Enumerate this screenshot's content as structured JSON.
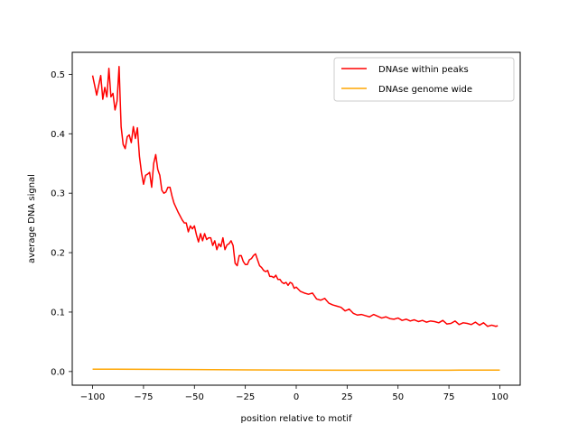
{
  "chart_data": {
    "type": "line",
    "title": "",
    "xlabel": "position relative to motif",
    "ylabel": "average DNA signal",
    "xlim": [
      -110,
      110
    ],
    "ylim": [
      -0.023,
      0.537
    ],
    "xticks": [
      -100,
      -75,
      -50,
      -25,
      0,
      25,
      50,
      75,
      100
    ],
    "xtick_labels": [
      "−100",
      "−75",
      "−50",
      "−25",
      "0",
      "25",
      "50",
      "75",
      "100"
    ],
    "yticks": [
      0.0,
      0.1,
      0.2,
      0.3,
      0.4,
      0.5
    ],
    "ytick_labels": [
      "0.0",
      "0.1",
      "0.2",
      "0.3",
      "0.4",
      "0.5"
    ],
    "grid": false,
    "legend": "upper-right",
    "series": [
      {
        "name": "DNAse within peaks",
        "color": "#ff0000",
        "x": [
          -100,
          -98,
          -96,
          -95,
          -94,
          -93,
          -92,
          -91,
          -90,
          -89,
          -88,
          -87,
          -86,
          -85,
          -84,
          -83,
          -82,
          -81,
          -80,
          -79,
          -78,
          -77,
          -76,
          -75,
          -74,
          -73,
          -72,
          -71,
          -70,
          -69,
          -68,
          -67,
          -66,
          -65,
          -64,
          -63,
          -62,
          -61,
          -60,
          -58,
          -56,
          -55,
          -54,
          -53,
          -52,
          -51,
          -50,
          -49,
          -48,
          -47,
          -46,
          -45,
          -44,
          -43,
          -42,
          -41,
          -40,
          -39,
          -38,
          -37,
          -36,
          -35,
          -34,
          -33,
          -32,
          -31,
          -30,
          -29,
          -28,
          -27,
          -26,
          -25,
          -24,
          -23,
          -22,
          -21,
          -20,
          -19,
          -18,
          -17,
          -16,
          -15,
          -14,
          -13,
          -12,
          -11,
          -10,
          -9,
          -8,
          -7,
          -6,
          -5,
          -4,
          -3,
          -2,
          -1,
          0,
          2,
          4,
          6,
          8,
          10,
          12,
          14,
          16,
          18,
          20,
          22,
          24,
          26,
          28,
          30,
          32,
          34,
          36,
          38,
          40,
          42,
          44,
          46,
          48,
          50,
          52,
          54,
          56,
          58,
          60,
          62,
          64,
          66,
          68,
          70,
          72,
          74,
          76,
          78,
          80,
          82,
          84,
          86,
          88,
          90,
          92,
          94,
          96,
          98,
          99
        ],
        "values": [
          0.498,
          0.465,
          0.498,
          0.458,
          0.478,
          0.462,
          0.51,
          0.462,
          0.468,
          0.44,
          0.455,
          0.513,
          0.412,
          0.382,
          0.375,
          0.395,
          0.398,
          0.385,
          0.412,
          0.392,
          0.41,
          0.362,
          0.335,
          0.315,
          0.33,
          0.332,
          0.335,
          0.31,
          0.35,
          0.365,
          0.34,
          0.33,
          0.305,
          0.3,
          0.302,
          0.31,
          0.31,
          0.295,
          0.283,
          0.268,
          0.255,
          0.25,
          0.25,
          0.235,
          0.245,
          0.24,
          0.245,
          0.23,
          0.218,
          0.232,
          0.22,
          0.232,
          0.222,
          0.225,
          0.225,
          0.212,
          0.22,
          0.205,
          0.215,
          0.21,
          0.225,
          0.205,
          0.213,
          0.215,
          0.22,
          0.212,
          0.182,
          0.178,
          0.195,
          0.195,
          0.185,
          0.18,
          0.18,
          0.188,
          0.19,
          0.195,
          0.198,
          0.188,
          0.178,
          0.175,
          0.17,
          0.168,
          0.17,
          0.16,
          0.16,
          0.158,
          0.162,
          0.155,
          0.155,
          0.15,
          0.148,
          0.15,
          0.145,
          0.15,
          0.148,
          0.14,
          0.142,
          0.135,
          0.132,
          0.13,
          0.132,
          0.122,
          0.12,
          0.123,
          0.115,
          0.112,
          0.11,
          0.108,
          0.102,
          0.105,
          0.098,
          0.095,
          0.096,
          0.094,
          0.092,
          0.096,
          0.093,
          0.09,
          0.092,
          0.089,
          0.088,
          0.09,
          0.086,
          0.088,
          0.085,
          0.087,
          0.084,
          0.086,
          0.083,
          0.085,
          0.084,
          0.082,
          0.086,
          0.08,
          0.081,
          0.085,
          0.079,
          0.082,
          0.081,
          0.079,
          0.083,
          0.078,
          0.082,
          0.076,
          0.078,
          0.076,
          0.077
        ]
      },
      {
        "name": "DNAse genome wide",
        "color": "#ffa500",
        "x": [
          -100,
          -75,
          -50,
          -25,
          0,
          25,
          50,
          75,
          100
        ],
        "values": [
          0.004,
          0.0038,
          0.0033,
          0.0028,
          0.0024,
          0.0022,
          0.0022,
          0.0023,
          0.0025
        ]
      }
    ]
  }
}
